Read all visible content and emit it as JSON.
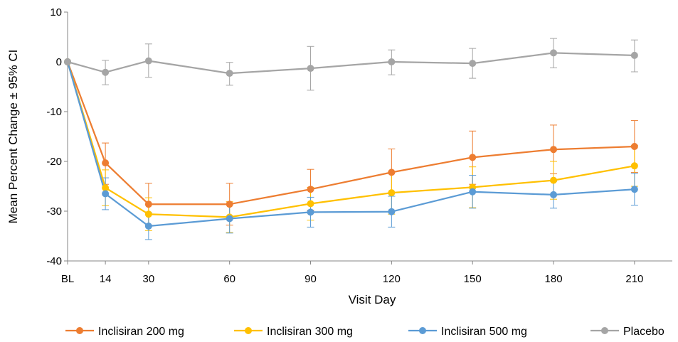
{
  "chart_data": {
    "type": "line",
    "xlabel": "Visit Day",
    "ylabel": "Mean Percent Change ± 95% CI",
    "x": [
      0,
      14,
      30,
      60,
      90,
      120,
      150,
      180,
      210
    ],
    "x_tick_values": [
      0,
      14,
      30,
      60,
      90,
      120,
      150,
      180,
      210
    ],
    "x_tick_labels": [
      "BL",
      "14",
      "30",
      "60",
      "90",
      "120",
      "150",
      "180",
      "210"
    ],
    "xlim": [
      0,
      224
    ],
    "ylim": [
      -40,
      10
    ],
    "y_ticks": [
      10,
      0,
      -10,
      -20,
      -30,
      -40
    ],
    "grid": false,
    "legend_position": "bottom",
    "series": [
      {
        "name": "Inclisiran 200 mg",
        "color": "#ED7D31",
        "values": [
          0,
          -20.3,
          -28.6,
          -28.6,
          -25.6,
          -22.2,
          -19.2,
          -17.6,
          -17.0
        ],
        "ci_low": [
          0,
          -24.6,
          -32.8,
          -32.8,
          -29.8,
          -27.0,
          -24.6,
          -22.5,
          -22.2
        ],
        "ci_high": [
          0,
          -16.3,
          -24.4,
          -24.4,
          -21.6,
          -17.5,
          -13.9,
          -12.7,
          -11.8
        ]
      },
      {
        "name": "Inclisiran 300 mg",
        "color": "#FFC000",
        "values": [
          0,
          -25.3,
          -30.6,
          -31.2,
          -28.5,
          -26.3,
          -25.2,
          -23.8,
          -20.9
        ],
        "ci_low": [
          0,
          -28.9,
          -33.9,
          -34.3,
          -31.8,
          -30.6,
          -29.3,
          -27.6,
          -25.0
        ],
        "ci_high": [
          0,
          -21.7,
          -27.3,
          -28.1,
          -25.2,
          -22.0,
          -21.1,
          -20.0,
          -16.8
        ]
      },
      {
        "name": "Inclisiran 500 mg",
        "color": "#5B9BD5",
        "values": [
          0,
          -26.5,
          -33.0,
          -31.5,
          -30.2,
          -30.1,
          -26.1,
          -26.7,
          -25.6
        ],
        "ci_low": [
          0,
          -29.7,
          -35.7,
          -34.4,
          -33.2,
          -33.2,
          -29.4,
          -29.4,
          -28.8
        ],
        "ci_high": [
          0,
          -23.3,
          -30.3,
          -28.6,
          -27.2,
          -27.0,
          -22.8,
          -24.0,
          -22.4
        ]
      },
      {
        "name": "Placebo",
        "color": "#A5A5A5",
        "values": [
          0,
          -2.1,
          0.2,
          -2.3,
          -1.3,
          0.0,
          -0.3,
          1.8,
          1.3
        ],
        "ci_low": [
          0,
          -4.6,
          -3.1,
          -4.7,
          -5.7,
          -2.6,
          -3.3,
          -1.2,
          -2.0
        ],
        "ci_high": [
          0,
          0.3,
          3.6,
          -0.1,
          3.1,
          2.4,
          2.7,
          4.7,
          4.4
        ]
      }
    ]
  }
}
